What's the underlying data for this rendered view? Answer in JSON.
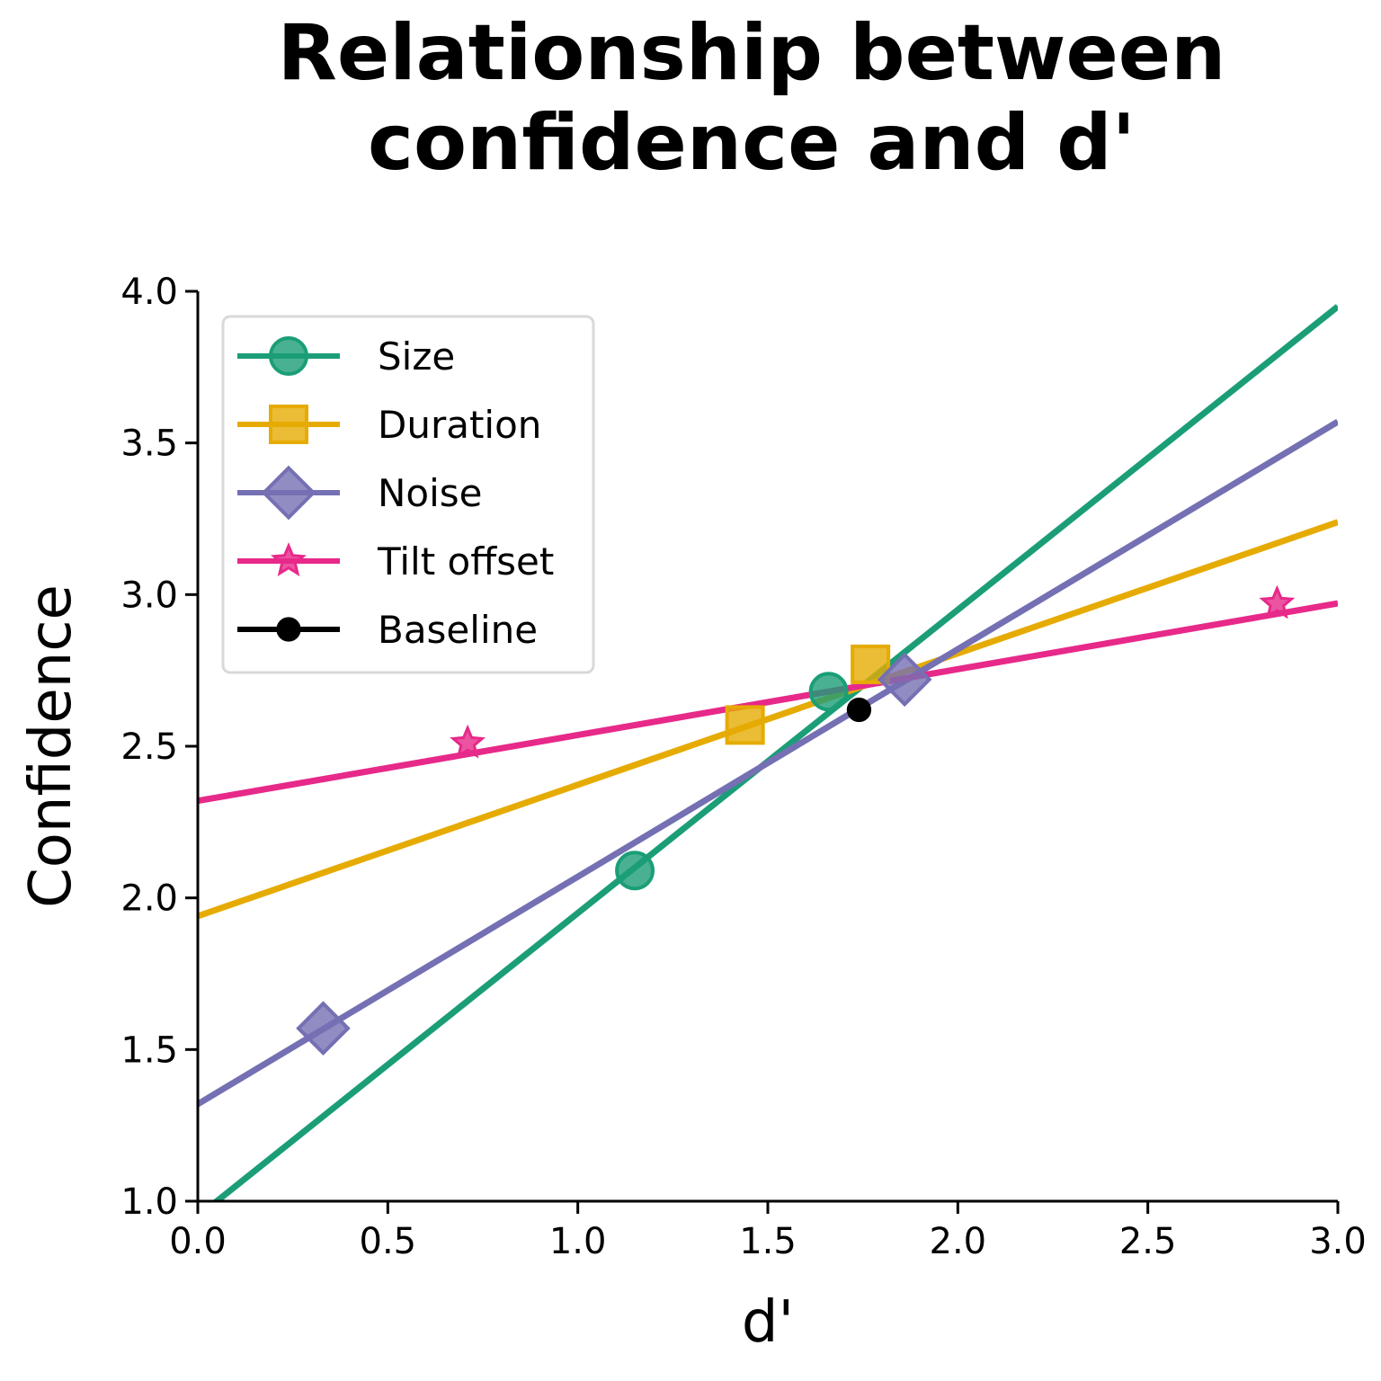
{
  "chart_data": {
    "type": "line",
    "title": [
      "Relationship between",
      "confidence and d'"
    ],
    "xlabel": "d'",
    "ylabel": "Confidence",
    "xlim": [
      0.0,
      3.0
    ],
    "ylim": [
      1.0,
      4.0
    ],
    "x_ticks": [
      "0.0",
      "0.5",
      "1.0",
      "1.5",
      "2.0",
      "2.5",
      "3.0"
    ],
    "y_ticks": [
      "1.0",
      "1.5",
      "2.0",
      "2.5",
      "3.0",
      "3.5",
      "4.0"
    ],
    "grid": false,
    "legend_position": "top-left",
    "series": [
      {
        "name": "Size",
        "color": "#1b9e77",
        "marker": "circle",
        "points": [
          [
            1.15,
            2.09
          ],
          [
            1.66,
            2.68
          ]
        ],
        "fit": {
          "intercept": 0.95,
          "slope": 1.0
        }
      },
      {
        "name": "Duration",
        "color": "#e6ab02",
        "marker": "square",
        "points": [
          [
            1.44,
            2.57
          ],
          [
            1.77,
            2.77
          ]
        ],
        "fit": {
          "intercept": 1.94,
          "slope": 0.433
        }
      },
      {
        "name": "Noise",
        "color": "#7570b3",
        "marker": "diamond",
        "points": [
          [
            0.33,
            1.57
          ],
          [
            1.86,
            2.72
          ]
        ],
        "fit": {
          "intercept": 1.32,
          "slope": 0.75
        }
      },
      {
        "name": "Tilt offset",
        "color": "#e7298a",
        "marker": "star",
        "points": [
          [
            0.71,
            2.51
          ],
          [
            2.84,
            2.97
          ]
        ],
        "fit": {
          "intercept": 2.32,
          "slope": 0.217
        }
      },
      {
        "name": "Baseline",
        "color": "#000000",
        "marker": "dot",
        "points": [
          [
            1.74,
            2.62
          ]
        ],
        "fit": null
      }
    ]
  }
}
